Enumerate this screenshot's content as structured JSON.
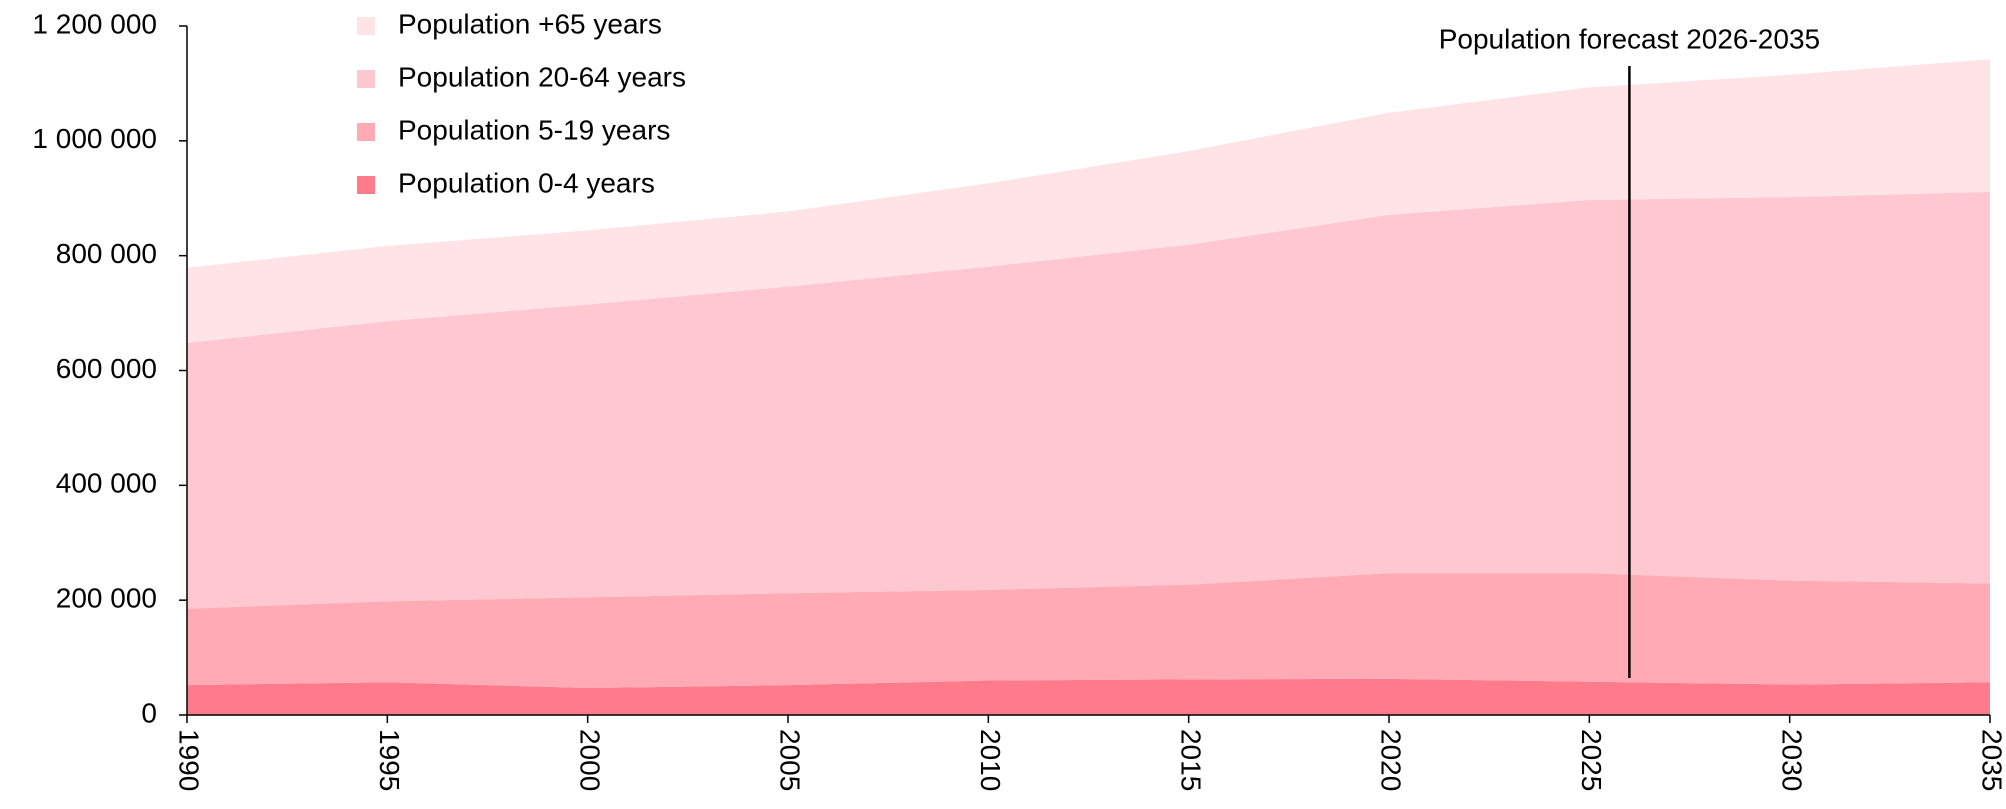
{
  "chart_data": {
    "type": "stacked_area",
    "x": [
      1990,
      1995,
      2000,
      2005,
      2010,
      2015,
      2020,
      2025,
      2030,
      2035
    ],
    "series": [
      {
        "name": "Population 0-4 years",
        "color": "#ff7b8c",
        "values": [
          52000,
          57000,
          47000,
          52000,
          60000,
          62000,
          63000,
          58000,
          53000,
          57000
        ]
      },
      {
        "name": "Population 5-19 years",
        "color": "#ffaab4",
        "values": [
          133000,
          141000,
          158000,
          160000,
          158000,
          165000,
          184000,
          189000,
          181000,
          172000
        ]
      },
      {
        "name": "Population 20-64 years",
        "color": "#ffc7d0",
        "values": [
          463000,
          488000,
          510000,
          534000,
          563000,
          592000,
          624000,
          650000,
          668000,
          682000
        ]
      },
      {
        "name": "Population +65 years",
        "color": "#ffe3e6",
        "values": [
          131000,
          131000,
          129000,
          131000,
          145000,
          163000,
          178000,
          196000,
          213000,
          231000
        ]
      }
    ],
    "xlim": [
      1990,
      2035
    ],
    "xticks": [
      1990,
      1995,
      2000,
      2005,
      2010,
      2015,
      2020,
      2025,
      2030,
      2035
    ],
    "ylim": [
      0,
      1200000
    ],
    "yticks": [
      0,
      {
        "value": 200000,
        "label": "200 000"
      },
      {
        "value": 400000,
        "label": "400 000"
      },
      {
        "value": 600000,
        "label": "600 000"
      },
      {
        "value": 800000,
        "label": "800 000"
      },
      {
        "value": 1000000,
        "label": "1 000 000"
      },
      {
        "value": 1200000,
        "label": "1 200 000"
      }
    ],
    "legend": "upper left",
    "annotation": {
      "text": "Population forecast 2026-2035",
      "x": 2026
    }
  }
}
